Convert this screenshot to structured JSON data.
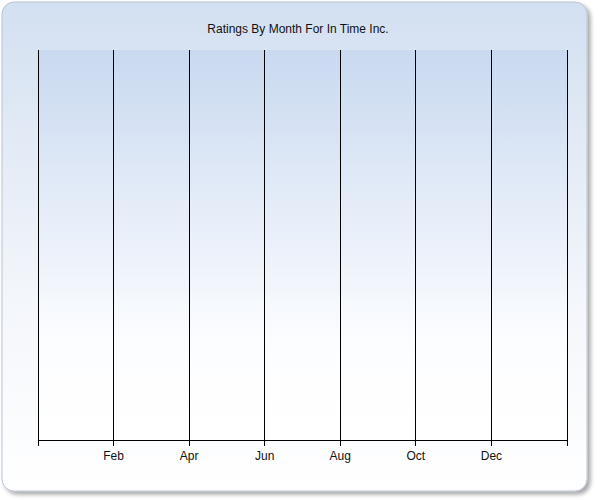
{
  "chart_data": {
    "type": "line",
    "title": "Ratings By Month For In Time Inc.",
    "categories": [
      null,
      "Feb",
      "Apr",
      "Jun",
      "Aug",
      "Oct",
      "Dec",
      null
    ],
    "values": [
      null,
      null,
      null,
      null,
      null,
      null,
      null,
      null
    ],
    "color": "#1f4e9c",
    "grid": true,
    "tick_labels": "x"
  }
}
